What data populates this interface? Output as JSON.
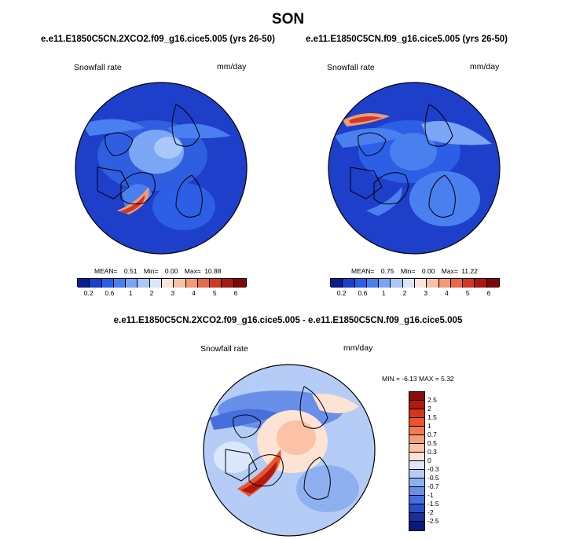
{
  "figure": {
    "title": "SON"
  },
  "panels": [
    {
      "case_title": "e.e11.E1850C5CN.2XCO2.f09_g16.cice5.005 (yrs 26-50)",
      "variable": "Snowfall rate",
      "units": "mm/day",
      "stats": {
        "mean": "0.51",
        "min": "0.00",
        "max": "10.88"
      },
      "stats_label_mean": "MEAN=",
      "stats_label_min": "Min=",
      "stats_label_max": "Max="
    },
    {
      "case_title": "e.e11.E1850C5CN.f09_g16.cice5.005 (yrs 26-50)",
      "variable": "Snowfall rate",
      "units": "mm/day",
      "stats": {
        "mean": "0.75",
        "min": "0.00",
        "max": "11.22"
      },
      "stats_label_mean": "MEAN=",
      "stats_label_min": "Min=",
      "stats_label_max": "Max="
    }
  ],
  "difference_panel": {
    "case_title": "e.e11.E1850C5CN.2XCO2.f09_g16.cice5.005 - e.e11.E1850C5CN.f09_g16.cice5.005",
    "variable": "Snowfall rate",
    "units": "mm/day",
    "stats_text": "MIN = -6.13 MAX =  5.32"
  },
  "colorbar_abs": {
    "ticks": [
      "0.2",
      "0.6",
      "1",
      "2",
      "3",
      "4",
      "5",
      "6"
    ],
    "colors": [
      "#0a1d8f",
      "#1a3fc8",
      "#2c5fe6",
      "#4a7ff0",
      "#7aa6f5",
      "#a9c7f7",
      "#d7e6fb",
      "#fbe5d9",
      "#f7c2a5",
      "#f19a75",
      "#e5694a",
      "#cf3a25",
      "#a81714",
      "#7a0a0a"
    ]
  },
  "colorbar_diff": {
    "ticks": [
      "2.5",
      "2",
      "1.5",
      "1",
      "0.7",
      "0.5",
      "0.3",
      "0",
      "-0.3",
      "-0.5",
      "-0.7",
      "-1",
      "-1.5",
      "-2",
      "-2.5"
    ],
    "colors": [
      "#8a0d0d",
      "#b5180f",
      "#d63319",
      "#e8552e",
      "#f27a50",
      "#f79e79",
      "#fbc2a6",
      "#fde3d3",
      "#dbe7fb",
      "#b5cdf6",
      "#8eb0f0",
      "#6890e8",
      "#476fdc",
      "#2a4dc5",
      "#16309f",
      "#0a1a7a"
    ]
  }
}
